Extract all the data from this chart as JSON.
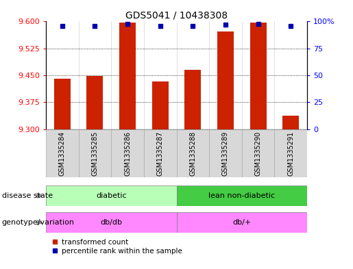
{
  "title": "GDS5041 / 10438308",
  "samples": [
    "GSM1335284",
    "GSM1335285",
    "GSM1335286",
    "GSM1335287",
    "GSM1335288",
    "GSM1335289",
    "GSM1335290",
    "GSM1335291"
  ],
  "transformed_count": [
    9.44,
    9.448,
    9.597,
    9.432,
    9.465,
    9.572,
    9.597,
    9.338
  ],
  "percentile_rank": [
    96,
    96,
    98,
    96,
    96,
    97,
    98,
    96
  ],
  "ylim_left": [
    9.3,
    9.6
  ],
  "ylim_right": [
    0,
    100
  ],
  "yticks_left": [
    9.3,
    9.375,
    9.45,
    9.525,
    9.6
  ],
  "yticks_right": [
    0,
    25,
    50,
    75,
    100
  ],
  "grid_values": [
    9.375,
    9.45,
    9.525
  ],
  "bar_color": "#CC2200",
  "dot_color": "#0000AA",
  "bar_width": 0.5,
  "bar_base": 9.3,
  "disease_color_1": "#b8ffb8",
  "disease_color_2": "#44cc44",
  "genotype_color": "#ff88ff",
  "row_label_disease": "disease state",
  "row_label_genotype": "genotype/variation",
  "legend_items": [
    "transformed count",
    "percentile rank within the sample"
  ],
  "legend_colors": [
    "#CC2200",
    "#0000AA"
  ],
  "sample_cell_color": "#d8d8d8",
  "sample_cell_border": "#aaaaaa"
}
